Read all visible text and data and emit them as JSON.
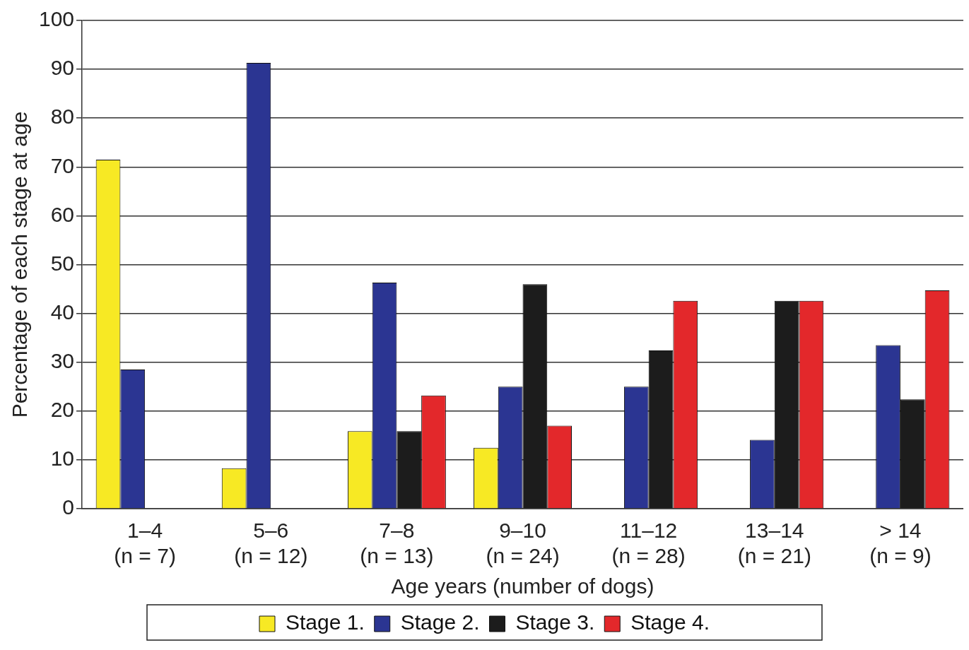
{
  "chart_data": {
    "type": "bar",
    "xlabel": "Age years (number of dogs)",
    "ylabel": "Percentage of each stage at age",
    "categories": [
      "1–4\n(n = 7)",
      "5–6\n(n = 12)",
      "7–8\n(n = 13)",
      "9–10\n(n = 24)",
      "11–12\n(n = 28)",
      "13–14\n(n = 21)",
      "> 14\n(n = 9)"
    ],
    "series": [
      {
        "name": "Stage 1.",
        "color": "#f7e924",
        "values": [
          71.5,
          8.3,
          15.9,
          12.5,
          0,
          0,
          0
        ]
      },
      {
        "name": "Stage 2.",
        "color": "#2b3592",
        "values": [
          28.5,
          91.3,
          46.3,
          25,
          25,
          14.1,
          33.5
        ]
      },
      {
        "name": "Stage 3.",
        "color": "#1c1c1c",
        "values": [
          0,
          0,
          15.9,
          46,
          32.4,
          42.6,
          22.4
        ]
      },
      {
        "name": "Stage 4.",
        "color": "#e3282b",
        "values": [
          0,
          0,
          23.2,
          17,
          42.6,
          42.6,
          44.7
        ]
      }
    ],
    "ylim": [
      0,
      100
    ],
    "yticks": [
      0,
      10,
      20,
      30,
      40,
      50,
      60,
      70,
      80,
      90,
      100
    ],
    "grid": "y",
    "legend": "bottom"
  }
}
